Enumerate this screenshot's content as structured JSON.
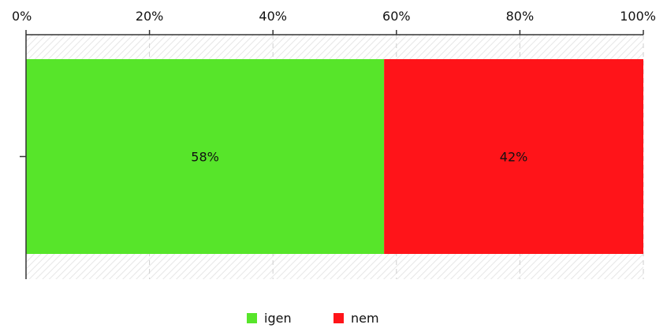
{
  "chart_data": {
    "type": "bar",
    "orientation": "horizontal",
    "stacked": true,
    "categories": [
      ""
    ],
    "series": [
      {
        "name": "igen",
        "values": [
          58
        ],
        "label": "58%",
        "color": "#57e52a"
      },
      {
        "name": "nem",
        "values": [
          42
        ],
        "label": "42%",
        "color": "#ff1419"
      }
    ],
    "xlim": [
      0,
      100
    ],
    "ticks": [
      {
        "value": 0,
        "label": "0%"
      },
      {
        "value": 20,
        "label": "20%"
      },
      {
        "value": 40,
        "label": "40%"
      },
      {
        "value": 60,
        "label": "60%"
      },
      {
        "value": 80,
        "label": "80%"
      },
      {
        "value": 100,
        "label": "100%"
      }
    ],
    "grid": true,
    "legend_position": "bottom-center"
  }
}
